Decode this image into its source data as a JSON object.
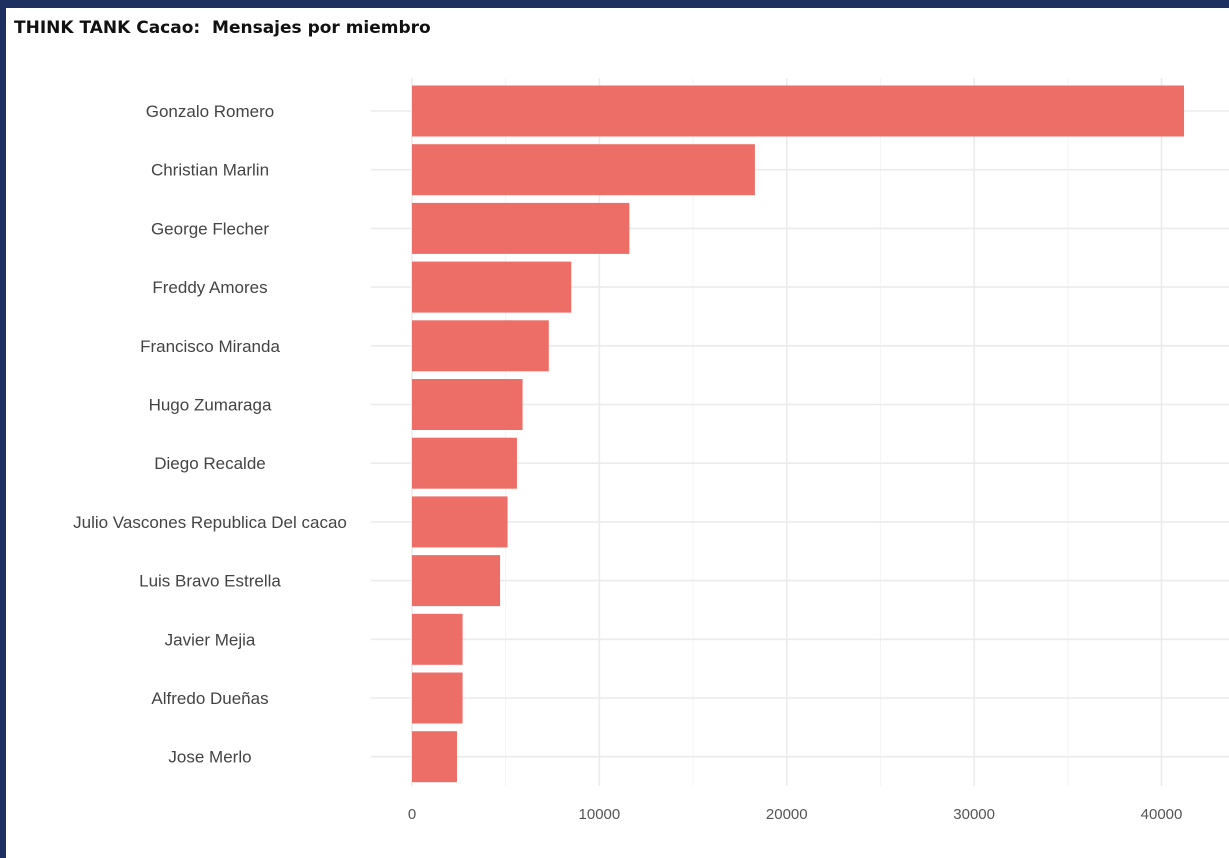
{
  "chart_data": {
    "type": "bar",
    "orientation": "horizontal",
    "title": "THINK TANK Cacao:  Mensajes por miembro",
    "categories": [
      "Gonzalo Romero",
      "Christian Marlin",
      "George Flecher",
      "Freddy Amores",
      "Francisco Miranda",
      "Hugo Zumaraga",
      "Diego Recalde",
      "Julio Vascones Republica Del cacao",
      "Luis Bravo Estrella",
      "Javier Mejia",
      "Alfredo Dueñas",
      "Jose Merlo"
    ],
    "values": [
      41200,
      18300,
      11600,
      8500,
      7300,
      5900,
      5600,
      5100,
      4700,
      2700,
      2700,
      2400
    ],
    "xlim": [
      0,
      43000
    ],
    "xticks": [
      "0",
      "10000",
      "20000",
      "30000",
      "40000"
    ],
    "xtick_values": [
      0,
      10000,
      20000,
      30000,
      40000
    ],
    "grid": true,
    "colors": {
      "bar": "#ed6e67",
      "grid": "#ebebeb",
      "background": "#ffffff",
      "frame": "#1e3060"
    }
  }
}
